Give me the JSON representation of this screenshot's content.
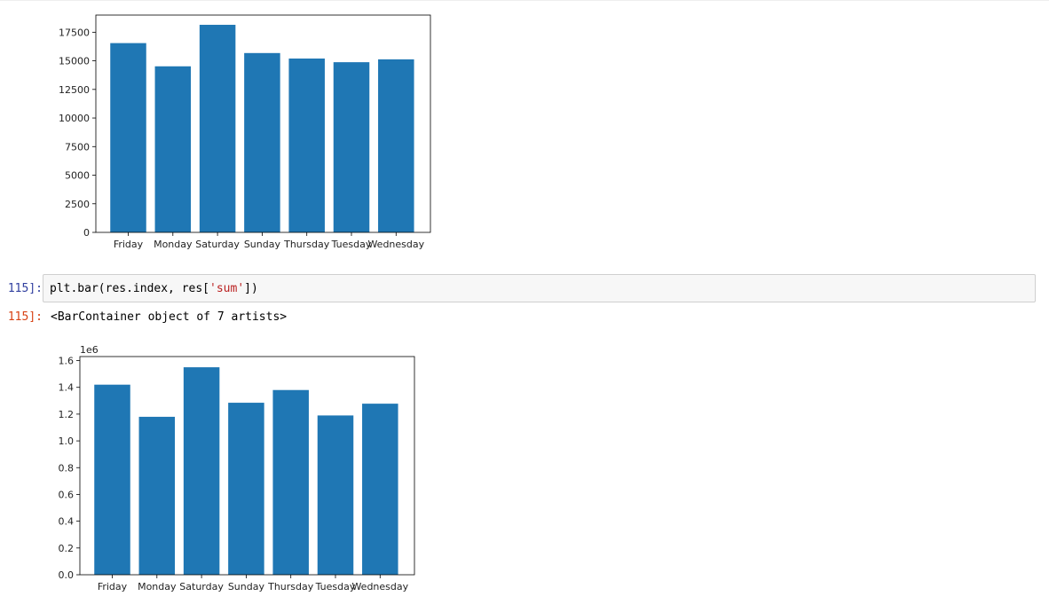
{
  "notebook": {
    "cell_prompt": "115]:",
    "output_prompt": "115]:",
    "code": {
      "prefix": "plt.bar(res.index, res[",
      "string_arg": "'sum'",
      "suffix": "])"
    },
    "output_text": "<BarContainer object of 7 artists>"
  },
  "colors": {
    "bar": "#1f77b4"
  },
  "chart_data": [
    {
      "type": "bar",
      "categories": [
        "Friday",
        "Monday",
        "Saturday",
        "Sunday",
        "Thursday",
        "Tuesday",
        "Wednesday"
      ],
      "values": [
        16550,
        14520,
        18150,
        15680,
        15200,
        14880,
        15130
      ],
      "ylim": [
        0,
        19000
      ],
      "yticks": [
        0,
        2500,
        5000,
        7500,
        10000,
        12500,
        15000,
        17500
      ],
      "ytick_labels": [
        "0",
        "2500",
        "5000",
        "7500",
        "10000",
        "12500",
        "15000",
        "17500"
      ],
      "offset_label": "",
      "title": "",
      "xlabel": "",
      "ylabel": ""
    },
    {
      "type": "bar",
      "categories": [
        "Friday",
        "Monday",
        "Saturday",
        "Sunday",
        "Thursday",
        "Tuesday",
        "Wednesday"
      ],
      "values": [
        1420000,
        1180000,
        1550000,
        1285000,
        1380000,
        1190000,
        1278000
      ],
      "ylim": [
        0,
        1630000
      ],
      "yticks": [
        0,
        200000,
        400000,
        600000,
        800000,
        1000000,
        1200000,
        1400000,
        1600000
      ],
      "ytick_labels": [
        "0.0",
        "0.2",
        "0.4",
        "0.6",
        "0.8",
        "1.0",
        "1.2",
        "1.4",
        "1.6"
      ],
      "offset_label": "1e6",
      "title": "",
      "xlabel": "",
      "ylabel": ""
    }
  ]
}
